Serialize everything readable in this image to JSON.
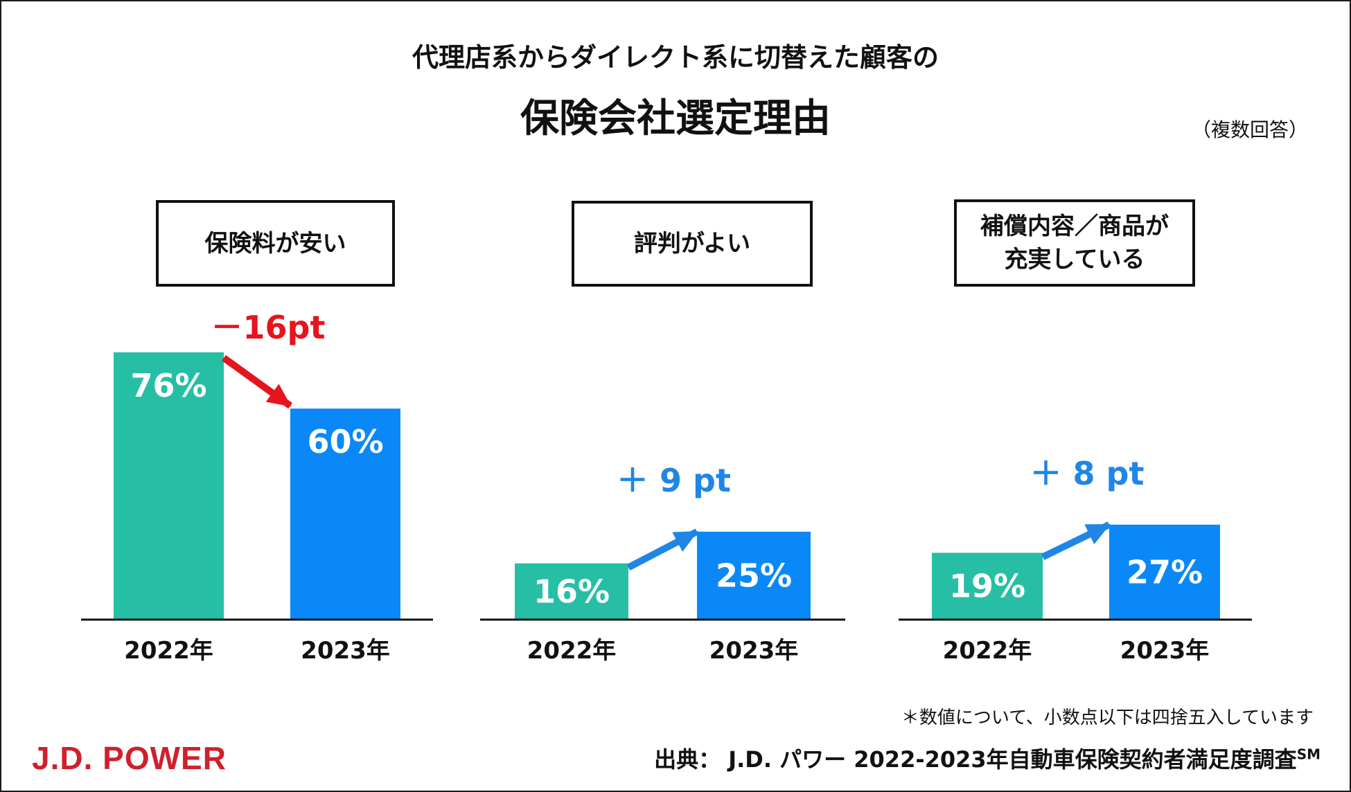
{
  "header": {
    "subtitle": "代理店系からダイレクト系に切替えた顧客の",
    "title": "保険会社選定理由",
    "note": "（複数回答）"
  },
  "colors": {
    "bar_2022": "#26bfa5",
    "bar_2023": "#0a88f8",
    "decrease": "#e5141d",
    "increase": "#1f86e6",
    "axis": "#111111",
    "logo": "#d0202b"
  },
  "chart_data": {
    "type": "bar",
    "unit": "%",
    "categories": [
      "2022年",
      "2023年"
    ],
    "ylim": [
      0,
      100
    ],
    "panels": [
      {
        "title": "保険料が安い",
        "values": [
          76,
          60
        ],
        "labels": [
          "76%",
          "60%"
        ],
        "change_label": "－16pt",
        "direction": "down"
      },
      {
        "title": "評判がよい",
        "values": [
          16,
          25
        ],
        "labels": [
          "16%",
          "25%"
        ],
        "change_label": "＋ 9 pt",
        "direction": "up"
      },
      {
        "title": "補償内容／商品が\n充実している",
        "values": [
          19,
          27
        ],
        "labels": [
          "19%",
          "27%"
        ],
        "change_label": "＋ 8 pt",
        "direction": "up"
      }
    ]
  },
  "footer": {
    "footnote": "＊数値について、小数点以下は四捨五入しています",
    "source": "出典： J.D. パワー 2022-2023年自動車保険契約者満足度調査",
    "source_mark": "SM",
    "logo": "J.D. POWER"
  }
}
